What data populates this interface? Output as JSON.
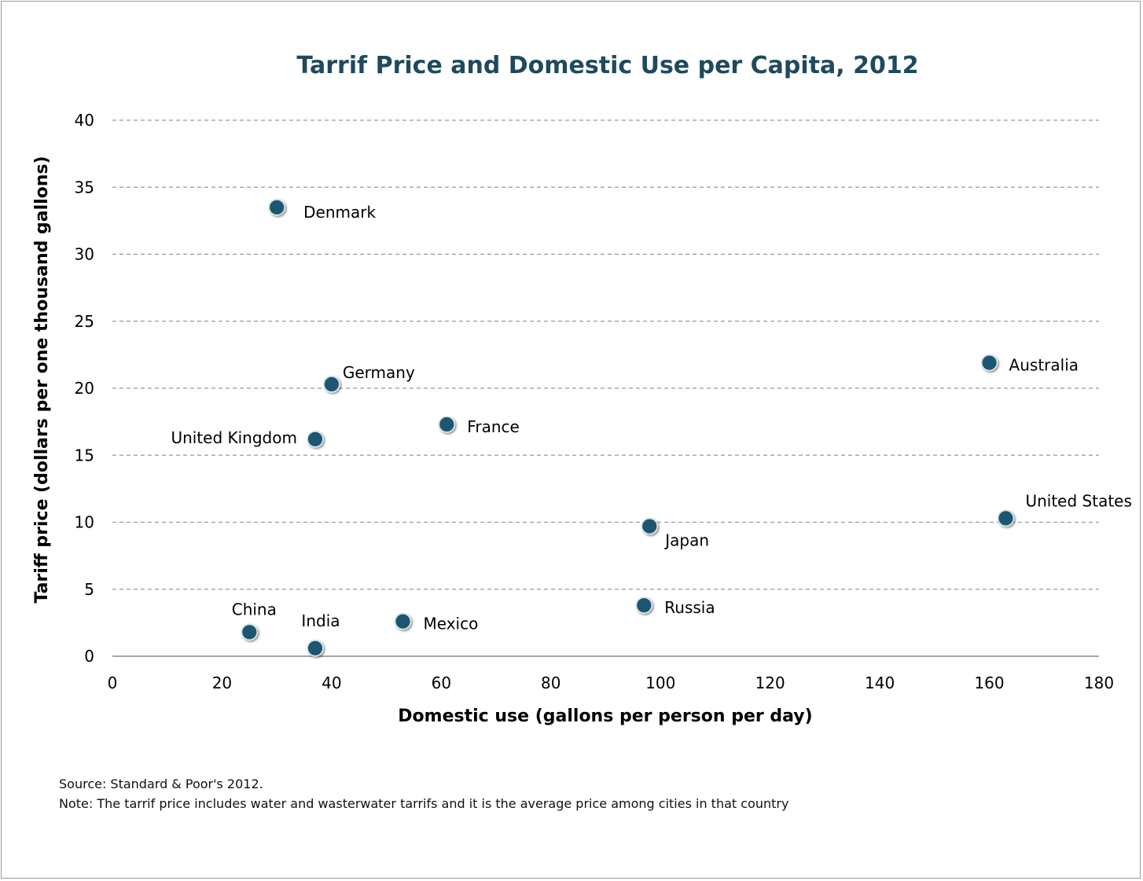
{
  "chart_data": {
    "type": "scatter",
    "title": "Tarrif Price and Domestic Use per Capita, 2012",
    "xlabel": "Domestic use  (gallons per person per day)",
    "ylabel": "Tariff price  (dollars per one thousand gallons)",
    "xlim": [
      0,
      180
    ],
    "ylim": [
      0,
      40
    ],
    "x_ticks": [
      0,
      20,
      40,
      60,
      80,
      100,
      120,
      140,
      160,
      180
    ],
    "y_ticks": [
      0,
      5,
      10,
      15,
      20,
      25,
      30,
      35,
      40
    ],
    "grid": "horizontal dashed",
    "legend": "none",
    "points": [
      {
        "label": "Denmark",
        "x": 30,
        "y": 33.5
      },
      {
        "label": "Germany",
        "x": 40,
        "y": 20.3
      },
      {
        "label": "United Kingdom",
        "x": 37,
        "y": 16.2
      },
      {
        "label": "France",
        "x": 61,
        "y": 17.3
      },
      {
        "label": "Australia",
        "x": 160,
        "y": 21.9
      },
      {
        "label": "United States",
        "x": 163,
        "y": 10.3
      },
      {
        "label": "Japan",
        "x": 98,
        "y": 9.7
      },
      {
        "label": "Russia",
        "x": 97,
        "y": 3.8
      },
      {
        "label": "Mexico",
        "x": 53,
        "y": 2.6
      },
      {
        "label": "China",
        "x": 25,
        "y": 1.8
      },
      {
        "label": "India",
        "x": 37,
        "y": 0.6
      }
    ],
    "colors": {
      "point_fill": "#1f5670",
      "title": "#1e4a5c",
      "grid": "#999999"
    }
  },
  "notes": {
    "source": "Source: Standard & Poor's 2012.",
    "note": "Note: The tarrif price includes water and wasterwater tarrifs and it is the average price among cities in that country"
  }
}
